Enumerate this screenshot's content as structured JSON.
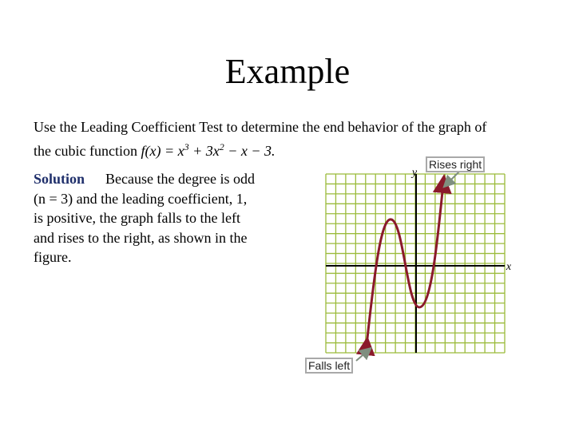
{
  "header": {
    "title": "Example"
  },
  "intro": {
    "lines": [
      "Use the Leading Coefficient Test to determine the end behavior of the graph of",
      "the cubic function"
    ],
    "equation": [
      "f(x) = x",
      "3",
      " + 3x",
      "2",
      " − x − 3."
    ]
  },
  "solution": {
    "label": "Solution",
    "lines": [
      "Because the degree is odd",
      "(n = 3) and the leading coefficient, 1,",
      "is positive, the graph falls to the left",
      "and rises to the right, as shown in the",
      "figure."
    ]
  },
  "figure": {
    "y_axis_label": "y",
    "x_axis_label": "x",
    "callouts": [
      "Rises right",
      "Falls left"
    ]
  }
}
